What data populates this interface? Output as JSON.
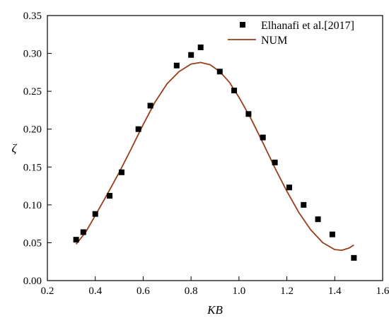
{
  "chart_data": {
    "type": "scatter",
    "xlabel": "KB",
    "ylabel": "ζ",
    "xlim": [
      0.2,
      1.6
    ],
    "ylim": [
      0.0,
      0.35
    ],
    "x_ticks": [
      0.2,
      0.4,
      0.6,
      0.8,
      1.0,
      1.2,
      1.4,
      1.6
    ],
    "x_tick_labels": [
      "0.2",
      "0.4",
      "0.6",
      "0.8",
      "1.0",
      "1.2",
      "1.4",
      "1.6"
    ],
    "y_ticks": [
      0.0,
      0.05,
      0.1,
      0.15,
      0.2,
      0.25,
      0.3,
      0.35
    ],
    "y_tick_labels": [
      "0.00",
      "0.05",
      "0.10",
      "0.15",
      "0.20",
      "0.25",
      "0.30",
      "0.35"
    ],
    "legend_position": "top-right",
    "series": [
      {
        "name": "Elhanafi et al.[2017]",
        "kind": "scatter",
        "marker": "square",
        "color": "#000000",
        "points": [
          [
            0.32,
            0.054
          ],
          [
            0.35,
            0.064
          ],
          [
            0.4,
            0.088
          ],
          [
            0.46,
            0.112
          ],
          [
            0.51,
            0.143
          ],
          [
            0.58,
            0.2
          ],
          [
            0.63,
            0.231
          ],
          [
            0.74,
            0.284
          ],
          [
            0.8,
            0.298
          ],
          [
            0.84,
            0.308
          ],
          [
            0.92,
            0.276
          ],
          [
            0.98,
            0.251
          ],
          [
            1.04,
            0.22
          ],
          [
            1.1,
            0.189
          ],
          [
            1.15,
            0.156
          ],
          [
            1.21,
            0.123
          ],
          [
            1.27,
            0.1
          ],
          [
            1.33,
            0.081
          ],
          [
            1.39,
            0.061
          ],
          [
            1.48,
            0.03
          ]
        ]
      },
      {
        "name": "NUM",
        "kind": "line",
        "color": "#9A3B1A",
        "points": [
          [
            0.32,
            0.048
          ],
          [
            0.36,
            0.064
          ],
          [
            0.4,
            0.086
          ],
          [
            0.45,
            0.114
          ],
          [
            0.5,
            0.143
          ],
          [
            0.55,
            0.174
          ],
          [
            0.6,
            0.206
          ],
          [
            0.65,
            0.236
          ],
          [
            0.7,
            0.26
          ],
          [
            0.75,
            0.276
          ],
          [
            0.8,
            0.286
          ],
          [
            0.84,
            0.288
          ],
          [
            0.88,
            0.285
          ],
          [
            0.92,
            0.276
          ],
          [
            0.96,
            0.262
          ],
          [
            1.0,
            0.242
          ],
          [
            1.05,
            0.214
          ],
          [
            1.1,
            0.182
          ],
          [
            1.15,
            0.149
          ],
          [
            1.2,
            0.118
          ],
          [
            1.25,
            0.09
          ],
          [
            1.3,
            0.067
          ],
          [
            1.35,
            0.05
          ],
          [
            1.4,
            0.041
          ],
          [
            1.43,
            0.04
          ],
          [
            1.46,
            0.043
          ],
          [
            1.48,
            0.047
          ]
        ]
      }
    ]
  }
}
